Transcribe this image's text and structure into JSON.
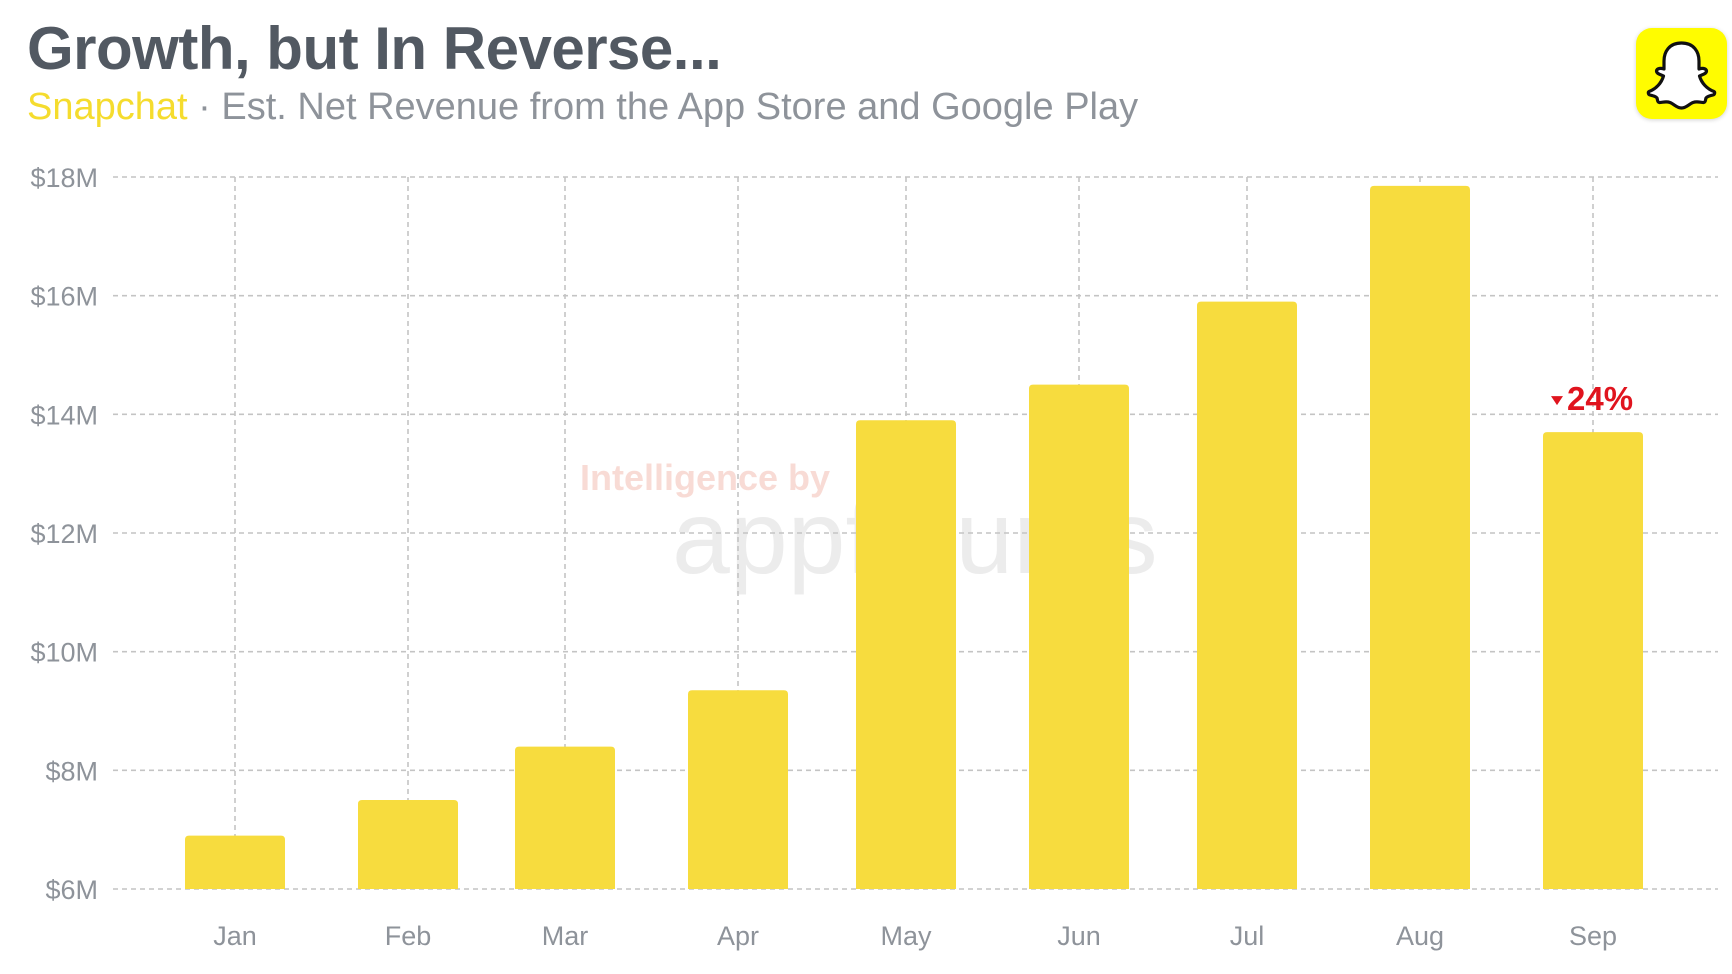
{
  "header": {
    "title": "Growth, but In Reverse...",
    "brand": "Snapchat",
    "separator": " · ",
    "subtitle": "Est. Net Revenue from the App Store and Google Play"
  },
  "logo": {
    "icon": "snapchat-ghost-icon",
    "background": "#fffc00"
  },
  "watermark": {
    "line1": "Intelligence by",
    "line2": "appfigures"
  },
  "colors": {
    "bar": "#f7dc3e",
    "accent": "#f5dc2e",
    "decline": "#e0141e"
  },
  "chart_data": {
    "type": "bar",
    "title": "Growth, but In Reverse...",
    "categories": [
      "Jan",
      "Feb",
      "Mar",
      "Apr",
      "May",
      "Jun",
      "Jul",
      "Aug",
      "Sep"
    ],
    "values": [
      6.9,
      7.5,
      8.4,
      9.35,
      13.9,
      14.5,
      15.9,
      17.85,
      13.7
    ],
    "unit": "USD millions",
    "ylim": [
      6,
      18
    ],
    "yticks": [
      6,
      8,
      10,
      12,
      14,
      16,
      18
    ],
    "ytick_labels": [
      "$6M",
      "$8M",
      "$10M",
      "$12M",
      "$14M",
      "$16M",
      "$18M"
    ],
    "grid": true,
    "legend": "none",
    "annotation": {
      "category": "Sep",
      "text": "24%",
      "direction": "down"
    }
  }
}
